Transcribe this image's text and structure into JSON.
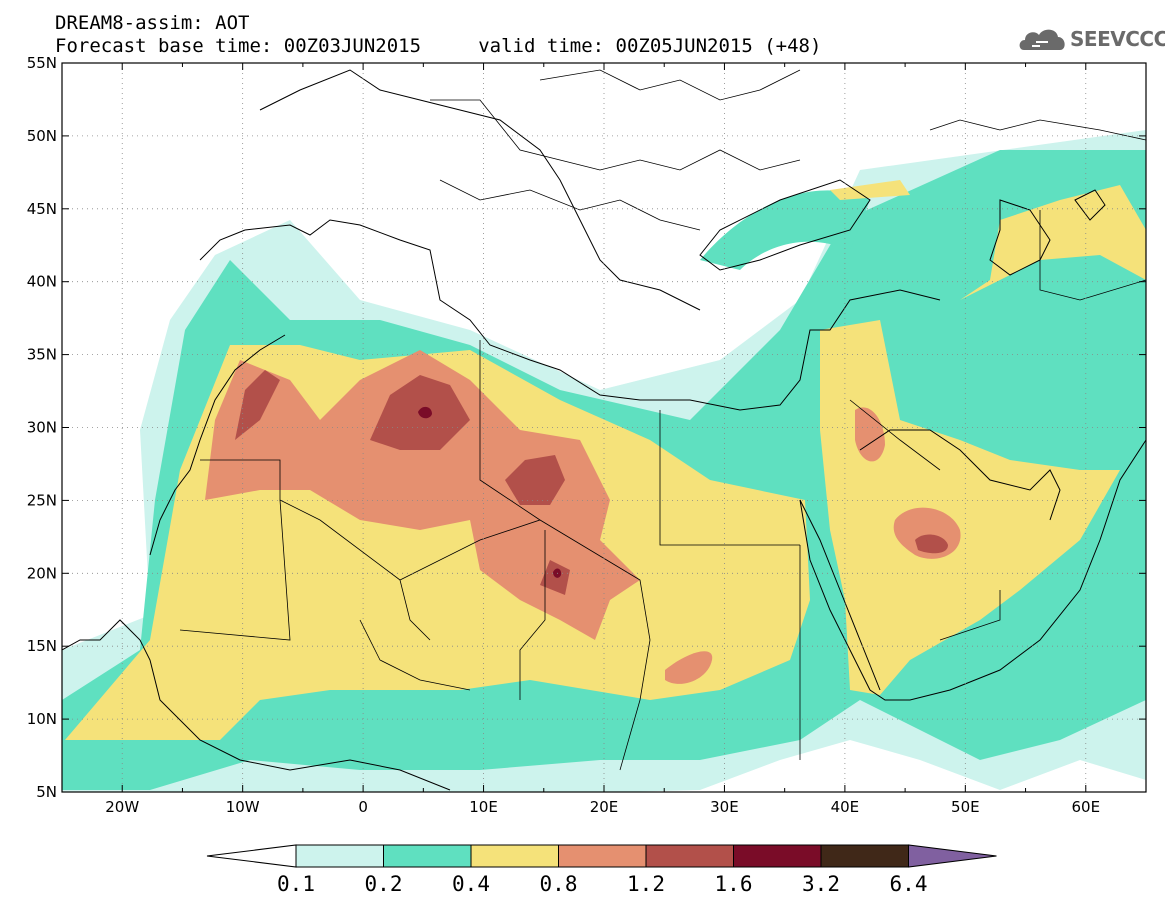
{
  "title": {
    "line1": "DREAM8-assim: AOT",
    "line2": "Forecast base time: 00Z03JUN2015     valid time: 00Z05JUN2015 (+48)"
  },
  "logo": {
    "text": "SEEVCCC",
    "icon": "cloud-icon"
  },
  "map": {
    "lon_range": [
      -25,
      65
    ],
    "lat_range": [
      5,
      55
    ],
    "lat_ticks": [
      "55N",
      "50N",
      "45N",
      "40N",
      "35N",
      "30N",
      "25N",
      "20N",
      "15N",
      "10N",
      "5N"
    ],
    "lon_ticks": [
      "20W",
      "10W",
      "0",
      "10E",
      "20E",
      "30E",
      "40E",
      "50E",
      "60E"
    ],
    "grid": "dotted"
  },
  "colorbar": {
    "levels": [
      "0.1",
      "0.2",
      "0.4",
      "0.8",
      "1.2",
      "1.6",
      "3.2",
      "6.4"
    ],
    "colors": [
      "#ffffff",
      "#cdf3ed",
      "#5fe0c0",
      "#f5e27a",
      "#e59070",
      "#b2504a",
      "#7a0c28",
      "#402818",
      "#8060a0"
    ]
  }
}
